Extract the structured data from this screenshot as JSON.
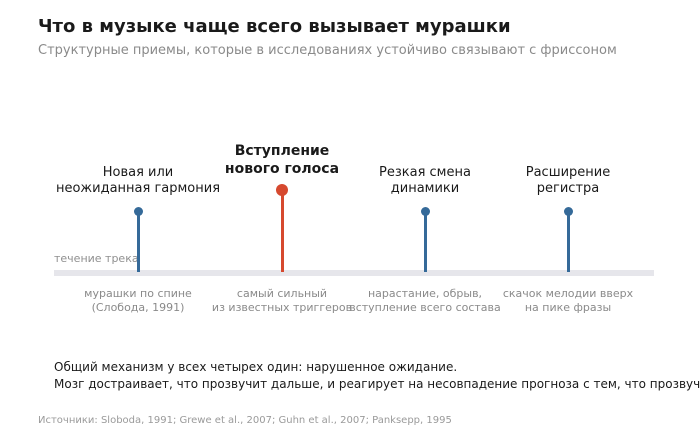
{
  "title": "Что в музыке чаще всего вызывает мурашки",
  "subtitle": "Структурные приемы, которые в исследованиях устойчиво связывают с фриссоном",
  "track_label": "течение трека",
  "markers": [
    {
      "label": "Новая или\nнеожиданная гармония",
      "caption": "мурашки по спине\n(Слобода, 1991)",
      "highlight": false,
      "color": "#356a99"
    },
    {
      "label": "Вступление\nнового голоса",
      "caption": "самый сильный\nиз известных триггеров",
      "highlight": true,
      "color": "#d6492f"
    },
    {
      "label": "Резкая смена\nдинамики",
      "caption": "нарастание, обрыв,\nвступление всего состава",
      "highlight": false,
      "color": "#356a99"
    },
    {
      "label": "Расширение\nрегистра",
      "caption": "скачок мелодии вверх\nна пике фразы",
      "highlight": false,
      "color": "#356a99"
    }
  ],
  "summary": {
    "line1": "Общий механизм у всех четырех один: нарушенное ожидание.",
    "line2": "Мозг достраивает, что прозвучит дальше, и реагирует на несовпадение прогноза с тем, что прозвучало."
  },
  "sources": "Источники: Sloboda, 1991; Grewe et al., 2007; Guhn et al., 2007; Panksepp, 1995"
}
